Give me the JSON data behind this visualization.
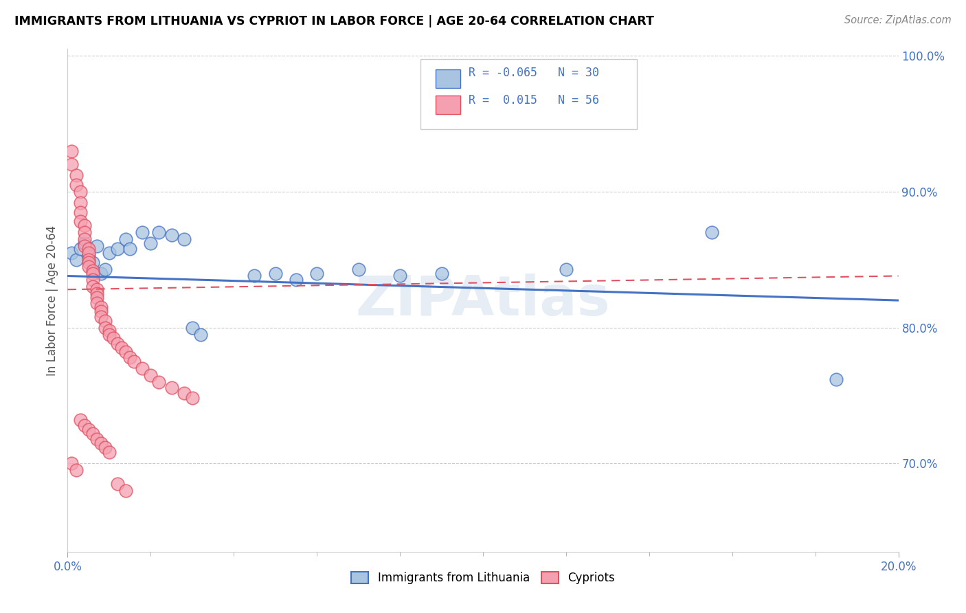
{
  "title": "IMMIGRANTS FROM LITHUANIA VS CYPRIOT IN LABOR FORCE | AGE 20-64 CORRELATION CHART",
  "source": "Source: ZipAtlas.com",
  "ylabel": "In Labor Force | Age 20-64",
  "xlim": [
    0.0,
    0.2
  ],
  "ylim": [
    0.635,
    1.005
  ],
  "ytick_positions": [
    0.7,
    0.8,
    0.9,
    1.0
  ],
  "color_blue": "#a8c4e0",
  "color_pink": "#f4a0b0",
  "line_color_blue": "#4472c4",
  "line_color_pink": "#e05060",
  "blue_trend": [
    0.838,
    0.82
  ],
  "pink_trend": [
    0.828,
    0.838
  ],
  "blue_scatter": [
    [
      0.001,
      0.855
    ],
    [
      0.002,
      0.85
    ],
    [
      0.003,
      0.858
    ],
    [
      0.004,
      0.862
    ],
    [
      0.005,
      0.853
    ],
    [
      0.006,
      0.848
    ],
    [
      0.007,
      0.86
    ],
    [
      0.008,
      0.84
    ],
    [
      0.009,
      0.843
    ],
    [
      0.01,
      0.855
    ],
    [
      0.012,
      0.858
    ],
    [
      0.014,
      0.865
    ],
    [
      0.015,
      0.858
    ],
    [
      0.018,
      0.87
    ],
    [
      0.02,
      0.862
    ],
    [
      0.022,
      0.87
    ],
    [
      0.025,
      0.868
    ],
    [
      0.028,
      0.865
    ],
    [
      0.03,
      0.8
    ],
    [
      0.032,
      0.795
    ],
    [
      0.045,
      0.838
    ],
    [
      0.05,
      0.84
    ],
    [
      0.055,
      0.835
    ],
    [
      0.06,
      0.84
    ],
    [
      0.07,
      0.843
    ],
    [
      0.08,
      0.838
    ],
    [
      0.09,
      0.84
    ],
    [
      0.12,
      0.843
    ],
    [
      0.155,
      0.87
    ],
    [
      0.185,
      0.762
    ]
  ],
  "pink_scatter": [
    [
      0.001,
      0.93
    ],
    [
      0.001,
      0.92
    ],
    [
      0.002,
      0.912
    ],
    [
      0.002,
      0.905
    ],
    [
      0.003,
      0.9
    ],
    [
      0.003,
      0.892
    ],
    [
      0.003,
      0.885
    ],
    [
      0.003,
      0.878
    ],
    [
      0.004,
      0.875
    ],
    [
      0.004,
      0.87
    ],
    [
      0.004,
      0.865
    ],
    [
      0.004,
      0.86
    ],
    [
      0.005,
      0.858
    ],
    [
      0.005,
      0.855
    ],
    [
      0.005,
      0.85
    ],
    [
      0.005,
      0.848
    ],
    [
      0.005,
      0.845
    ],
    [
      0.006,
      0.842
    ],
    [
      0.006,
      0.84
    ],
    [
      0.006,
      0.835
    ],
    [
      0.006,
      0.83
    ],
    [
      0.007,
      0.828
    ],
    [
      0.007,
      0.825
    ],
    [
      0.007,
      0.822
    ],
    [
      0.007,
      0.818
    ],
    [
      0.008,
      0.815
    ],
    [
      0.008,
      0.812
    ],
    [
      0.008,
      0.808
    ],
    [
      0.009,
      0.805
    ],
    [
      0.009,
      0.8
    ],
    [
      0.01,
      0.798
    ],
    [
      0.01,
      0.795
    ],
    [
      0.011,
      0.792
    ],
    [
      0.012,
      0.788
    ],
    [
      0.013,
      0.785
    ],
    [
      0.014,
      0.782
    ],
    [
      0.015,
      0.778
    ],
    [
      0.016,
      0.775
    ],
    [
      0.018,
      0.77
    ],
    [
      0.02,
      0.765
    ],
    [
      0.022,
      0.76
    ],
    [
      0.025,
      0.756
    ],
    [
      0.028,
      0.752
    ],
    [
      0.03,
      0.748
    ],
    [
      0.003,
      0.732
    ],
    [
      0.004,
      0.728
    ],
    [
      0.005,
      0.725
    ],
    [
      0.006,
      0.722
    ],
    [
      0.007,
      0.718
    ],
    [
      0.008,
      0.715
    ],
    [
      0.009,
      0.712
    ],
    [
      0.01,
      0.708
    ],
    [
      0.012,
      0.685
    ],
    [
      0.014,
      0.68
    ],
    [
      0.001,
      0.7
    ],
    [
      0.002,
      0.695
    ]
  ]
}
